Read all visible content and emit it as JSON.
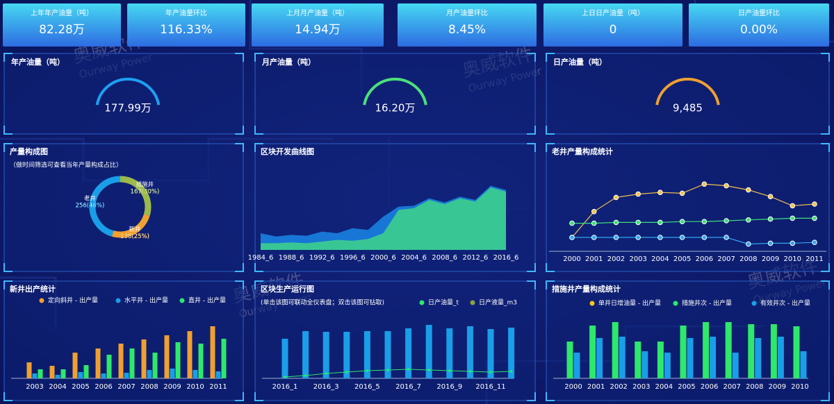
{
  "kpis": [
    {
      "label": "上年年产油量（吨）",
      "value": "82.28万"
    },
    {
      "label": "年产油量环比",
      "value": "116.33%"
    },
    {
      "label": "上月月产油量（吨）",
      "value": "14.94万"
    },
    {
      "label": "月产油量环比",
      "value": "8.45%"
    },
    {
      "label": "上日日产油量（吨）",
      "value": "0"
    },
    {
      "label": "日产油量环比",
      "value": "0.00%"
    }
  ],
  "watermark": {
    "text": "奥威软件",
    "subtext": "Ourway Power"
  },
  "gauges": [
    {
      "title": "年产油量（吨）",
      "value": "177.99万",
      "color": "#1ea0f0"
    },
    {
      "title": "月产油量（吨）",
      "value": "16.20万",
      "color": "#4ce07a"
    },
    {
      "title": "日产油量（吨）",
      "value": "9,485",
      "color": "#f0a030"
    }
  ],
  "chart_data": [
    {
      "type": "pie",
      "title": "产量构成图",
      "subtitle": "（做时间筛选可查看当年产量构成占比）",
      "categories": [
        "措施井",
        "新井",
        "老井"
      ],
      "values": [
        167,
        138,
        256
      ],
      "value_labels": [
        "167(30%)",
        "138(25%)",
        "256(46%)"
      ],
      "colors": [
        "#9cba4a",
        "#f0a030",
        "#1a9ee8"
      ]
    },
    {
      "type": "area",
      "title": "区块开发曲线图",
      "categories": [
        "1984_6",
        null,
        "1988_6",
        null,
        "1992_6",
        null,
        "1996_6",
        null,
        "2000_6",
        null,
        "2004_6",
        null,
        "2008_6",
        null,
        "2012_6",
        null,
        "2016_6"
      ],
      "ylim": [
        0,
        100
      ],
      "series": [
        {
          "color": "#1a7fe0",
          "values": [
            20,
            16,
            18,
            17,
            22,
            20,
            26,
            24,
            40,
            52,
            53,
            62,
            57,
            64,
            60,
            77,
            72
          ]
        },
        {
          "color": "#3ccf8e",
          "values": [
            8,
            8,
            9,
            8,
            10,
            12,
            11,
            13,
            20,
            48,
            50,
            60,
            55,
            62,
            58,
            75,
            70
          ]
        }
      ]
    },
    {
      "type": "line",
      "title": "老井产量构成统计",
      "categories": [
        "2000",
        "2001",
        "2002",
        "2003",
        "2004",
        "2005",
        "2006",
        "2007",
        "2008",
        "2009",
        "2010",
        "2011"
      ],
      "ylim": [
        0,
        100
      ],
      "series": [
        {
          "color": "#f5c24a",
          "values": [
            15,
            46,
            63,
            67,
            69,
            68,
            79,
            77,
            72,
            64,
            53,
            55
          ]
        },
        {
          "color": "#3de07a",
          "values": [
            32,
            32,
            33,
            33,
            33,
            34,
            34,
            35,
            36,
            37,
            38,
            38
          ]
        },
        {
          "color": "#2fa8f0",
          "values": [
            15,
            15,
            15,
            15,
            15,
            15,
            15,
            15,
            7,
            8,
            8,
            9
          ]
        }
      ]
    },
    {
      "type": "bar",
      "title": "新井出产统计",
      "categories": [
        "2003",
        "2004",
        "2005",
        "2006",
        "2007",
        "2008",
        "2009",
        "2010",
        "2011"
      ],
      "ylim": [
        0,
        80
      ],
      "series": [
        {
          "name": "定向斜井 - 出产量",
          "color": "#f0a030",
          "values": [
            23,
            18,
            37,
            43,
            50,
            56,
            62,
            68,
            75
          ]
        },
        {
          "name": "水平井 - 出产量",
          "color": "#1a9ee8",
          "values": [
            7,
            5,
            9,
            7,
            8,
            12,
            14,
            12,
            10
          ]
        },
        {
          "name": "直井 - 出产量",
          "color": "#2ee86a",
          "values": [
            13,
            13,
            19,
            34,
            43,
            37,
            52,
            50,
            57
          ]
        }
      ]
    },
    {
      "type": "bar",
      "title": "区块生产运行图",
      "subtitle": "(单击该图可联动全仪表盘；双击该图可钻取)",
      "categories": [
        "2016_1",
        null,
        "2016_3",
        null,
        "2016_5",
        null,
        "2016_7",
        null,
        "2016_9",
        null,
        "2016_11",
        null
      ],
      "ylim": [
        0,
        80
      ],
      "series": [
        {
          "name": "日产油量_t",
          "type": "line",
          "color": "#2ee86a",
          "values": [
            2,
            4,
            7,
            9,
            11,
            12,
            13,
            12,
            11,
            10,
            9,
            10
          ]
        },
        {
          "name": "日产液量_m3",
          "color": "#1a9ee8",
          "legend_color": "#8aa53a",
          "values": [
            57,
            68,
            67,
            67,
            68,
            68,
            72,
            77,
            72,
            75,
            71,
            73
          ]
        }
      ]
    },
    {
      "type": "bar",
      "title": "措施井产量构成统计",
      "categories": [
        "2000",
        "2001",
        "2002",
        "2003",
        "2004",
        "2005",
        "2006",
        "2007",
        "2008",
        "2009",
        "2010"
      ],
      "ylim": [
        0,
        80
      ],
      "series": [
        {
          "name": "单井日增油量 - 出产量",
          "type": "line",
          "color": "#f5c518",
          "values": [
            null,
            null,
            null,
            null,
            null,
            null,
            null,
            null,
            null,
            null,
            null
          ]
        },
        {
          "name": "措施井次 - 出产量",
          "color": "#2ee86a",
          "values": [
            53,
            76,
            81,
            53,
            53,
            76,
            81,
            81,
            78,
            78,
            75
          ]
        },
        {
          "name": "有效井次 - 出产量",
          "color": "#1a9ee8",
          "values": [
            37,
            58,
            60,
            39,
            37,
            58,
            60,
            37,
            58,
            60,
            39
          ]
        }
      ]
    }
  ]
}
